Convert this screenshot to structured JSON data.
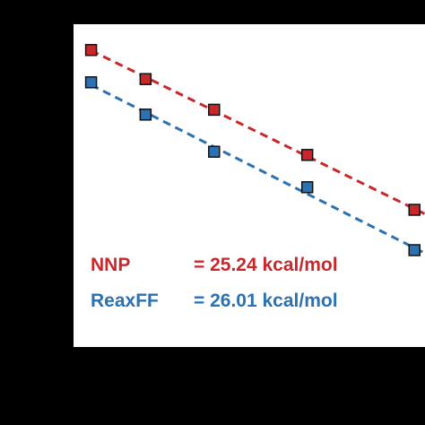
{
  "chart_data": {
    "type": "scatter",
    "background": "#000000",
    "plot_background": "#ffffff",
    "xlim": [
      0,
      100
    ],
    "ylim": [
      0,
      100
    ],
    "grid": false,
    "series": [
      {
        "name": "NNP",
        "color": "#c8282c",
        "line_style": "dashed",
        "marker": "square",
        "x": [
          5,
          20.5,
          40,
          66.5,
          97
        ],
        "y": [
          92,
          83,
          73.5,
          59.5,
          42.5
        ]
      },
      {
        "name": "ReaxFF",
        "color": "#2c72b2",
        "line_style": "dashed",
        "marker": "square",
        "x": [
          5,
          20.5,
          40,
          66.5,
          97
        ],
        "y": [
          82,
          72,
          60.5,
          49.5,
          30
        ]
      }
    ],
    "legend": {
      "placement": "bottom-left",
      "entries": [
        {
          "label": "NNP",
          "value": "= 25.24 kcal/mol",
          "color": "#c8282c"
        },
        {
          "label": "ReaxFF",
          "value": "= 26.01 kcal/mol",
          "color": "#2c72b2"
        }
      ]
    }
  }
}
